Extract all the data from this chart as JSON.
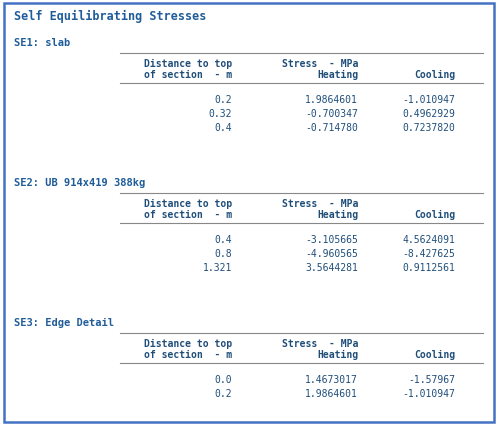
{
  "title": "Self Equilibrating Stresses",
  "title_color": "#1F5C99",
  "background_color": "#FFFFFF",
  "border_color": "#4472C4",
  "sections": [
    {
      "label": "SE1: slab",
      "rows": [
        [
          "0.2",
          "1.9864601",
          "-1.010947"
        ],
        [
          "0.32",
          "-0.700347",
          "0.4962929"
        ],
        [
          "0.4",
          "-0.714780",
          "0.7237820"
        ]
      ]
    },
    {
      "label": "SE2: UB 914x419 388kg",
      "rows": [
        [
          "0.4",
          "-3.105665",
          "4.5624091"
        ],
        [
          "0.8",
          "-4.960565",
          "-8.427625"
        ],
        [
          "1.321",
          "3.5644281",
          "0.9112561"
        ]
      ]
    },
    {
      "label": "SE3: Edge Detail",
      "rows": [
        [
          "0.0",
          "1.4673017",
          "-1.57967"
        ],
        [
          "0.2",
          "1.9864601",
          "-1.010947"
        ]
      ]
    }
  ],
  "label_color": "#1F5C99",
  "header_color": "#1F4E79",
  "data_color": "#1F4E79",
  "line_color": "#888888",
  "font_family": "monospace"
}
